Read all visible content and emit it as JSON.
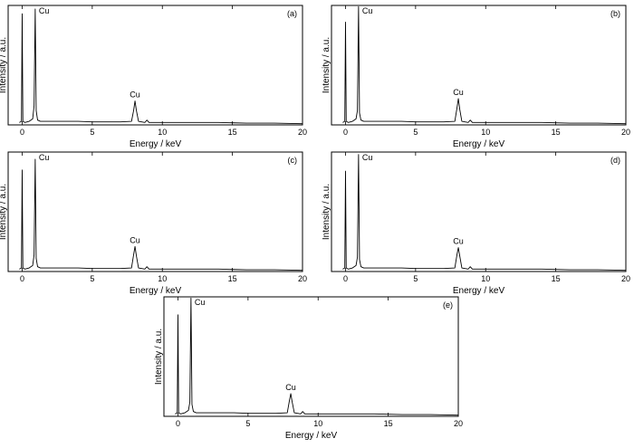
{
  "chart_data": [
    {
      "type": "line",
      "panel_label": "(a)",
      "xlabel": "Energy / keV",
      "ylabel": "Intensity / a.u.",
      "xlim": [
        -1,
        20
      ],
      "xticks": [
        0,
        5,
        10,
        15,
        20
      ],
      "ylim": [
        0,
        100
      ],
      "series": [
        {
          "x": [
            -0.2,
            -0.05,
            0,
            0.05,
            0.2,
            0.5,
            0.75,
            0.85,
            0.93,
            1.0,
            1.1,
            1.3,
            2,
            3,
            4,
            5,
            6,
            7,
            7.8,
            7.95,
            8.05,
            8.15,
            8.3,
            8.75,
            8.9,
            9.05,
            9.5,
            10,
            12,
            14,
            16,
            18,
            20
          ],
          "y": [
            2,
            3,
            93,
            3,
            2,
            3,
            5,
            16,
            97,
            12,
            4,
            3,
            3,
            3,
            3,
            2.5,
            2.5,
            2.5,
            3,
            12,
            20,
            12,
            3,
            2,
            4,
            2,
            2,
            2,
            2,
            2,
            1.5,
            1.5,
            1
          ]
        }
      ],
      "annotations": [
        {
          "text": "Cu",
          "x": 0.93,
          "y": 97
        },
        {
          "text": "Cu",
          "x": 8.05,
          "y": 20
        }
      ]
    },
    {
      "type": "line",
      "panel_label": "(b)",
      "xlabel": "Energy / keV",
      "ylabel": "Intensity / a.u.",
      "xlim": [
        -1,
        20
      ],
      "xticks": [
        0,
        5,
        10,
        15,
        20
      ],
      "ylim": [
        0,
        100
      ],
      "series": [
        {
          "x": [
            -0.2,
            -0.05,
            0,
            0.05,
            0.2,
            0.5,
            0.75,
            0.85,
            0.93,
            1.0,
            1.1,
            1.3,
            2,
            3,
            4,
            5,
            6,
            7,
            7.8,
            7.95,
            8.05,
            8.15,
            8.3,
            8.75,
            8.9,
            9.05,
            9.5,
            10,
            12,
            14,
            16,
            18,
            20
          ],
          "y": [
            2,
            3,
            86,
            3,
            2,
            3,
            5,
            12,
            99,
            10,
            4,
            3,
            3,
            3,
            3,
            2.5,
            2.5,
            2.5,
            3,
            14,
            22,
            13,
            3,
            2,
            4,
            2,
            2,
            2,
            2,
            2,
            1.5,
            1.5,
            1
          ]
        }
      ],
      "annotations": [
        {
          "text": "Cu",
          "x": 0.93,
          "y": 99
        },
        {
          "text": "Cu",
          "x": 8.05,
          "y": 22
        }
      ]
    },
    {
      "type": "line",
      "panel_label": "(c)",
      "xlabel": "Energy / keV",
      "ylabel": "Intensity / a.u.",
      "xlim": [
        -1,
        20
      ],
      "xticks": [
        0,
        5,
        10,
        15,
        20
      ],
      "ylim": [
        0,
        100
      ],
      "series": [
        {
          "x": [
            -0.2,
            -0.05,
            0,
            0.05,
            0.2,
            0.5,
            0.75,
            0.85,
            0.93,
            1.0,
            1.1,
            1.3,
            2,
            3,
            4,
            5,
            6,
            7,
            7.8,
            7.95,
            8.05,
            8.15,
            8.3,
            8.75,
            8.9,
            9.05,
            9.5,
            10,
            12,
            14,
            16,
            18,
            20
          ],
          "y": [
            2,
            3,
            85,
            3,
            2,
            3,
            5,
            14,
            94,
            11,
            4,
            3,
            3,
            3,
            3,
            2.5,
            2.5,
            2.5,
            3,
            14,
            21,
            13,
            3,
            2,
            4,
            2,
            2,
            2,
            2,
            2,
            1.5,
            1.5,
            1
          ]
        }
      ],
      "annotations": [
        {
          "text": "Cu",
          "x": 0.93,
          "y": 94
        },
        {
          "text": "Cu",
          "x": 8.05,
          "y": 21
        }
      ]
    },
    {
      "type": "line",
      "panel_label": "(d)",
      "xlabel": "Energy / keV",
      "ylabel": "Intensity / a.u.",
      "xlim": [
        -1,
        20
      ],
      "xticks": [
        0,
        5,
        10,
        15,
        20
      ],
      "ylim": [
        0,
        100
      ],
      "series": [
        {
          "x": [
            -0.2,
            -0.05,
            0,
            0.05,
            0.2,
            0.5,
            0.75,
            0.85,
            0.93,
            1.0,
            1.1,
            1.3,
            2,
            3,
            4,
            5,
            6,
            7,
            7.8,
            7.95,
            8.05,
            8.15,
            8.3,
            8.75,
            8.9,
            9.05,
            9.5,
            10,
            12,
            14,
            16,
            18,
            20
          ],
          "y": [
            2,
            3,
            84,
            3,
            2,
            3,
            5,
            12,
            98,
            10,
            4,
            3,
            3,
            3,
            3,
            2.5,
            2.5,
            2.5,
            3,
            14,
            20,
            13,
            3,
            2,
            4,
            2,
            2,
            2,
            2,
            2,
            1.5,
            1.5,
            1
          ]
        }
      ],
      "annotations": [
        {
          "text": "Cu",
          "x": 0.93,
          "y": 98
        },
        {
          "text": "Cu",
          "x": 8.05,
          "y": 20
        }
      ]
    },
    {
      "type": "line",
      "panel_label": "(e)",
      "xlabel": "Energy / keV",
      "ylabel": "Intensity / a.u.",
      "xlim": [
        -1,
        20
      ],
      "xticks": [
        0,
        5,
        10,
        15,
        20
      ],
      "ylim": [
        0,
        100
      ],
      "series": [
        {
          "x": [
            -0.2,
            -0.05,
            0,
            0.05,
            0.2,
            0.5,
            0.75,
            0.85,
            0.93,
            1.0,
            1.1,
            1.3,
            2,
            3,
            4,
            5,
            6,
            7,
            7.8,
            7.95,
            8.05,
            8.15,
            8.3,
            8.75,
            8.9,
            9.05,
            9.5,
            10,
            12,
            14,
            16,
            18,
            20
          ],
          "y": [
            2,
            3,
            85,
            3,
            2,
            3,
            5,
            12,
            99,
            10,
            4,
            3,
            3,
            3,
            3,
            2.5,
            2.5,
            2.5,
            3,
            13,
            19,
            12,
            3,
            2,
            4,
            2,
            2,
            2,
            2,
            2,
            1.5,
            1.5,
            1
          ]
        }
      ],
      "annotations": [
        {
          "text": "Cu",
          "x": 0.93,
          "y": 99
        },
        {
          "text": "Cu",
          "x": 8.05,
          "y": 19
        }
      ]
    }
  ]
}
